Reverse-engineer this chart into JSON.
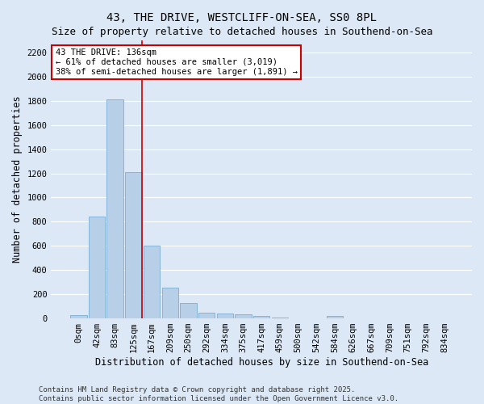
{
  "title": "43, THE DRIVE, WESTCLIFF-ON-SEA, SS0 8PL",
  "subtitle": "Size of property relative to detached houses in Southend-on-Sea",
  "xlabel": "Distribution of detached houses by size in Southend-on-Sea",
  "ylabel": "Number of detached properties",
  "bar_labels": [
    "0sqm",
    "42sqm",
    "83sqm",
    "125sqm",
    "167sqm",
    "209sqm",
    "250sqm",
    "292sqm",
    "334sqm",
    "375sqm",
    "417sqm",
    "459sqm",
    "500sqm",
    "542sqm",
    "584sqm",
    "626sqm",
    "667sqm",
    "709sqm",
    "751sqm",
    "792sqm",
    "834sqm"
  ],
  "bar_values": [
    25,
    845,
    1810,
    1210,
    600,
    255,
    130,
    50,
    42,
    32,
    22,
    10,
    0,
    0,
    20,
    0,
    0,
    0,
    0,
    0,
    0
  ],
  "bar_color": "#b8cfe8",
  "bar_edgecolor": "#7aaed6",
  "annotation_text_line1": "43 THE DRIVE: 136sqm",
  "annotation_text_line2": "← 61% of detached houses are smaller (3,019)",
  "annotation_text_line3": "38% of semi-detached houses are larger (1,891) →",
  "annotation_box_facecolor": "#ffffff",
  "annotation_box_edgecolor": "#cc0000",
  "vline_color": "#cc0000",
  "vline_x_index": 3,
  "ylim": [
    0,
    2300
  ],
  "yticks": [
    0,
    200,
    400,
    600,
    800,
    1000,
    1200,
    1400,
    1600,
    1800,
    2000,
    2200
  ],
  "background_color": "#dce8f5",
  "grid_color": "#ffffff",
  "footer_line1": "Contains HM Land Registry data © Crown copyright and database right 2025.",
  "footer_line2": "Contains public sector information licensed under the Open Government Licence v3.0.",
  "title_fontsize": 10,
  "subtitle_fontsize": 9,
  "xlabel_fontsize": 8.5,
  "ylabel_fontsize": 8.5,
  "tick_fontsize": 7.5,
  "annot_fontsize": 7.5,
  "footer_fontsize": 6.5
}
